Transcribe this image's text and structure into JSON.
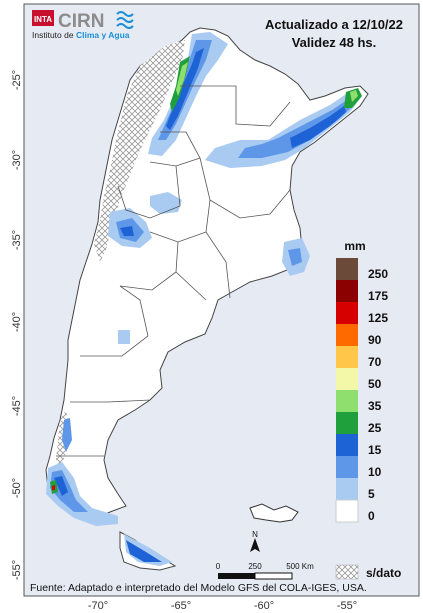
{
  "header": {
    "updated": "Actualizado a 12/10/22",
    "validity": "Validez 48 hs."
  },
  "logo": {
    "inta": "INTA",
    "cirn": "CIRN",
    "institute": "Instituto de ",
    "institute_highlight": "Clima y Agua"
  },
  "axes": {
    "lat_labels": [
      "-25°",
      "-30°",
      "-35°",
      "-40°",
      "-45°",
      "-50°",
      "-55°"
    ],
    "lon_labels": [
      "-70°",
      "-65°",
      "-60°",
      "-55°"
    ]
  },
  "legend": {
    "unit": "mm",
    "entries": [
      {
        "label": "250",
        "color": "#6b4a3a"
      },
      {
        "label": "175",
        "color": "#8b0000"
      },
      {
        "label": "125",
        "color": "#d60000"
      },
      {
        "label": "90",
        "color": "#ff6a00"
      },
      {
        "label": "70",
        "color": "#ffc64a"
      },
      {
        "label": "50",
        "color": "#f3f7a8"
      },
      {
        "label": "35",
        "color": "#8fdf6f"
      },
      {
        "label": "25",
        "color": "#20a03c"
      },
      {
        "label": "15",
        "color": "#1e63d6"
      },
      {
        "label": "10",
        "color": "#5f97e8"
      },
      {
        "label": "5",
        "color": "#a9cbf2"
      },
      {
        "label": "0",
        "color": "#ffffff"
      }
    ],
    "nodata_label": "s/dato"
  },
  "scale": {
    "labels": [
      "0",
      "250",
      "500 Km"
    ],
    "north": "N"
  },
  "footer": {
    "source": "Fuente: Adaptado e interpretado del Modelo GFS del COLA-IGES, USA."
  },
  "colors": {
    "sea": "#e6eaf3",
    "land": "#ffffff",
    "border": "#444444"
  }
}
